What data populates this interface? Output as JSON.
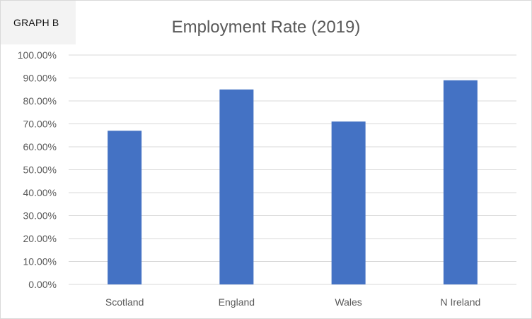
{
  "graph_label": "GRAPH B",
  "chart_data": {
    "type": "bar",
    "title": "Employment Rate (2019)",
    "categories": [
      "Scotland",
      "England",
      "Wales",
      "N Ireland"
    ],
    "values": [
      0.67,
      0.85,
      0.71,
      0.89
    ],
    "ylim": [
      0,
      1.0
    ],
    "yticks": [
      0,
      0.1,
      0.2,
      0.3,
      0.4,
      0.5,
      0.6,
      0.7,
      0.8,
      0.9,
      1.0
    ],
    "ytick_labels": [
      "0.00%",
      "10.00%",
      "20.00%",
      "30.00%",
      "40.00%",
      "50.00%",
      "60.00%",
      "70.00%",
      "80.00%",
      "90.00%",
      "100.00%"
    ],
    "grid": true,
    "legend": "none",
    "bar_color": "#4472c4",
    "grid_color": "#d9d9d9"
  }
}
